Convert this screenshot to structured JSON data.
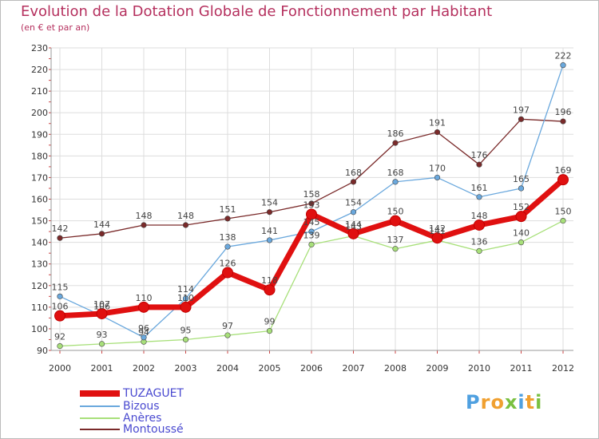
{
  "title": "Evolution de la Dotation Globale de Fonctionnement par Habitant",
  "subtitle": "(en € et par an)",
  "brand": "Proxiti",
  "chart_data": {
    "type": "line",
    "x": [
      "2000",
      "2001",
      "2002",
      "2003",
      "2004",
      "2005",
      "2006",
      "2007",
      "2008",
      "2009",
      "2010",
      "2011",
      "2012"
    ],
    "ylim": [
      90,
      230
    ],
    "yticks": [
      90,
      100,
      110,
      120,
      130,
      140,
      150,
      160,
      170,
      180,
      190,
      200,
      210,
      220,
      230
    ],
    "series": [
      {
        "name": "Montoussé",
        "color": "#7a2a2a",
        "values": [
          142,
          144,
          148,
          148,
          151,
          154,
          158,
          168,
          186,
          191,
          176,
          197,
          196
        ]
      },
      {
        "name": "Anères",
        "color": "#a8e07a",
        "values": [
          92,
          93,
          94,
          95,
          97,
          99,
          139,
          143,
          137,
          141,
          136,
          140,
          150
        ]
      },
      {
        "name": "Bizous",
        "color": "#6aa8dd",
        "values": [
          115,
          106,
          96,
          114,
          138,
          141,
          145,
          154,
          168,
          170,
          161,
          165,
          222
        ]
      },
      {
        "name": "TUZAGUET",
        "color": "#e01010",
        "values": [
          106,
          107,
          110,
          110,
          126,
          118,
          153,
          144,
          150,
          142,
          148,
          152,
          169
        ]
      }
    ],
    "labels": [
      {
        "series": "Montoussé",
        "texts": [
          "142",
          "144",
          "148",
          "148",
          "151",
          "154",
          "158",
          "168",
          "186",
          "191",
          "176",
          "197",
          "196"
        ]
      },
      {
        "series": "Anères",
        "texts": [
          "92",
          "93",
          "94",
          "95",
          "97",
          "99",
          "139",
          "143",
          "137",
          "141",
          "136",
          "140",
          "150"
        ]
      },
      {
        "series": "Bizous",
        "texts": [
          "115",
          "106",
          "96",
          "114",
          "138",
          "141",
          "145",
          "154",
          "168",
          "170",
          "161",
          "165",
          "222"
        ]
      },
      {
        "series": "TUZAGUET",
        "texts": [
          "106",
          "107",
          "110",
          "110",
          "126",
          "118",
          "153",
          "144",
          "150",
          "142",
          "148",
          "152",
          "169"
        ]
      }
    ]
  },
  "legend": [
    {
      "name": "TUZAGUET",
      "color": "#e01010"
    },
    {
      "name": "Bizous",
      "color": "#6aa8dd"
    },
    {
      "name": "Anères",
      "color": "#a8e07a"
    },
    {
      "name": "Montoussé",
      "color": "#7a2a2a"
    }
  ]
}
